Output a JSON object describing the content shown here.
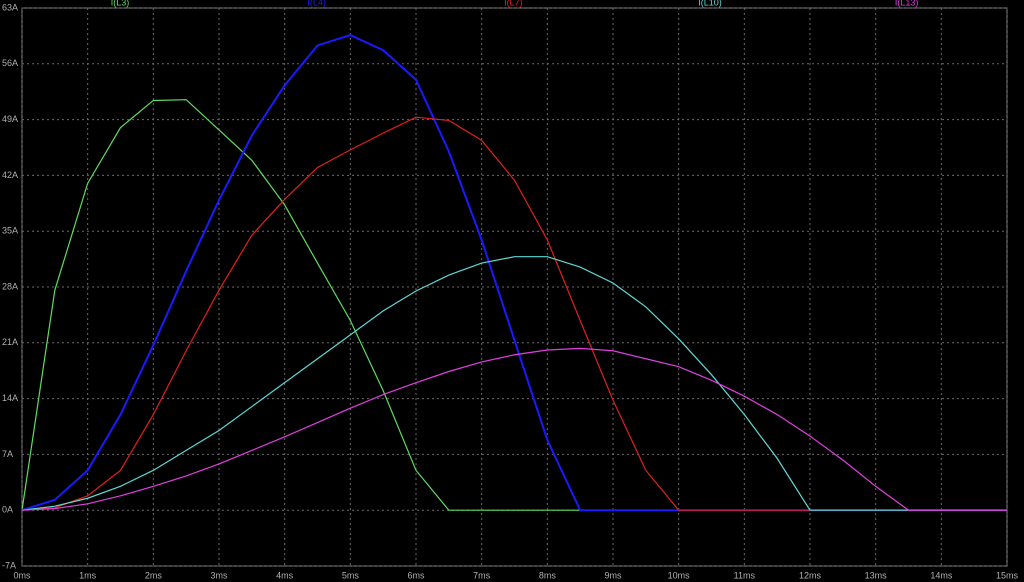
{
  "chart_data": {
    "type": "line",
    "x": [
      0,
      0.5,
      1,
      1.5,
      2,
      2.5,
      3,
      3.5,
      4,
      4.5,
      5,
      5.5,
      6,
      6.5,
      7,
      7.5,
      8,
      8.5,
      9,
      9.5,
      10,
      10.5,
      11,
      11.5,
      12,
      12.5,
      13,
      13.5,
      14,
      14.5,
      15
    ],
    "series": [
      {
        "name": "I(L3)",
        "color": "#5fdc5f",
        "values": [
          0,
          27.6,
          41,
          48,
          51.4,
          51.5,
          47.7,
          43.9,
          38.3,
          31,
          23.8,
          15,
          5,
          0,
          0,
          0,
          0,
          0,
          0,
          0,
          0,
          0,
          0,
          0,
          0,
          0,
          0,
          0,
          0,
          0,
          0
        ]
      },
      {
        "name": "I(L4)",
        "color": "#1a1aff",
        "values": [
          0,
          1.3,
          5,
          12,
          20.7,
          30,
          38.9,
          47,
          53.3,
          58.3,
          59.6,
          57.7,
          54,
          45,
          33.9,
          21.3,
          8.8,
          0,
          0,
          0,
          0,
          0,
          0,
          0,
          0,
          0,
          0,
          0,
          0,
          0,
          0
        ]
      },
      {
        "name": "I(L7)",
        "color": "#e02020",
        "values": [
          0,
          0.3,
          1.8,
          5,
          12,
          20,
          27.6,
          34.5,
          39,
          43,
          45.2,
          47.3,
          49.3,
          48.9,
          46.4,
          41.4,
          33.9,
          23.8,
          13.8,
          5,
          0,
          0,
          0,
          0,
          0,
          0,
          0,
          0,
          0,
          0,
          0
        ]
      },
      {
        "name": "I(L10)",
        "color": "#5fd8d8",
        "values": [
          0,
          0.5,
          1.5,
          3,
          5,
          7.5,
          10,
          13,
          16,
          19,
          22,
          25,
          27.5,
          29.5,
          31,
          31.8,
          31.8,
          30.5,
          28.5,
          25.5,
          21.5,
          17,
          12,
          6.5,
          0,
          0,
          0,
          0,
          0,
          0,
          0
        ]
      },
      {
        "name": "I(L13)",
        "color": "#e040e0",
        "values": [
          0,
          0.2,
          0.8,
          1.8,
          3,
          4.3,
          5.8,
          7.5,
          9.2,
          11,
          12.8,
          14.5,
          16,
          17.4,
          18.6,
          19.5,
          20.1,
          20.3,
          20,
          19,
          18,
          16.3,
          14.3,
          12,
          9.3,
          6.3,
          3,
          0,
          0,
          0,
          0
        ]
      }
    ],
    "xlim": [
      0,
      15
    ],
    "ylim": [
      -7,
      63
    ],
    "xticks": [
      {
        "value": 0,
        "label": "0ms"
      },
      {
        "value": 1,
        "label": "1ms"
      },
      {
        "value": 2,
        "label": "2ms"
      },
      {
        "value": 3,
        "label": "3ms"
      },
      {
        "value": 4,
        "label": "4ms"
      },
      {
        "value": 5,
        "label": "5ms"
      },
      {
        "value": 6,
        "label": "6ms"
      },
      {
        "value": 7,
        "label": "7ms"
      },
      {
        "value": 8,
        "label": "8ms"
      },
      {
        "value": 9,
        "label": "9ms"
      },
      {
        "value": 10,
        "label": "10ms"
      },
      {
        "value": 11,
        "label": "11ms"
      },
      {
        "value": 12,
        "label": "12ms"
      },
      {
        "value": 13,
        "label": "13ms"
      },
      {
        "value": 14,
        "label": "14ms"
      },
      {
        "value": 15,
        "label": "15ms"
      }
    ],
    "yticks": [
      {
        "value": -7,
        "label": "-7A"
      },
      {
        "value": 0,
        "label": "0A"
      },
      {
        "value": 7,
        "label": "7A"
      },
      {
        "value": 14,
        "label": "14A"
      },
      {
        "value": 21,
        "label": "21A"
      },
      {
        "value": 28,
        "label": "28A"
      },
      {
        "value": 35,
        "label": "35A"
      },
      {
        "value": 42,
        "label": "42A"
      },
      {
        "value": 49,
        "label": "49A"
      },
      {
        "value": 56,
        "label": "56A"
      },
      {
        "value": 63,
        "label": "63A"
      }
    ],
    "grid": true
  }
}
